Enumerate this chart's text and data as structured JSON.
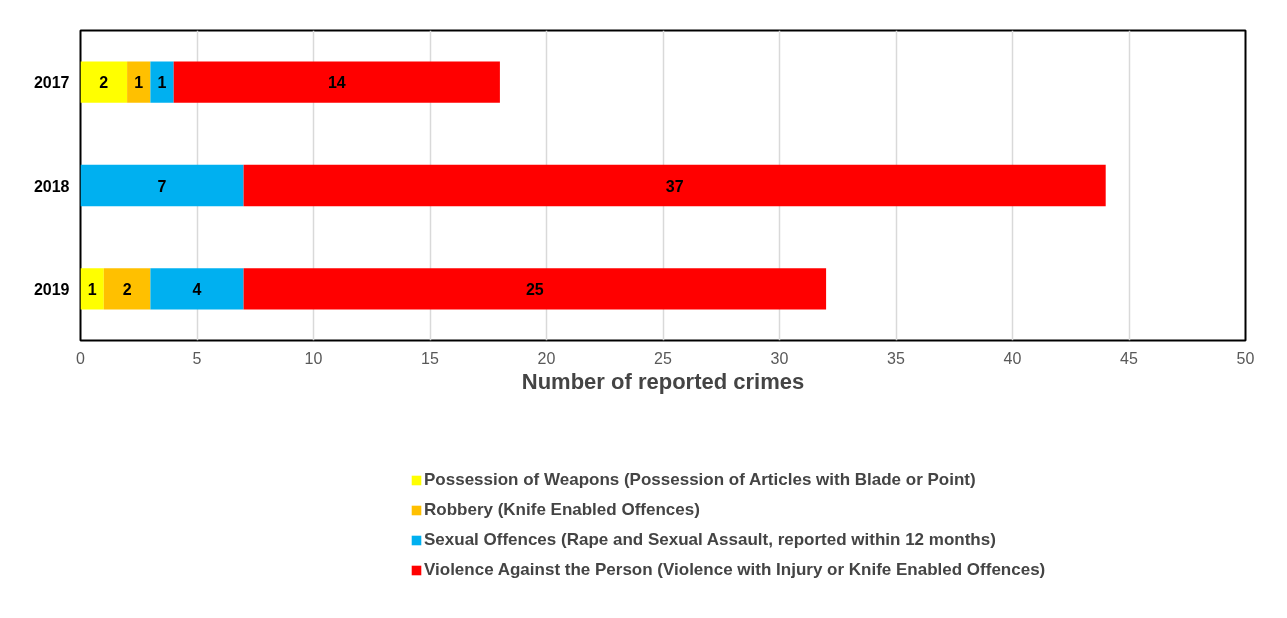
{
  "chart_data": {
    "type": "bar",
    "orientation": "horizontal",
    "stacked": true,
    "categories": [
      "2017",
      "2018",
      "2019"
    ],
    "series": [
      {
        "name": "Possession of Weapons (Possession of Articles with Blade or Point)",
        "color": "#ffff00",
        "values": [
          2,
          0,
          1
        ],
        "value_labels": [
          "2",
          null,
          "1"
        ]
      },
      {
        "name": "Robbery (Knife Enabled Offences)",
        "color": "#ffc000",
        "values": [
          1,
          0,
          2
        ],
        "value_labels": [
          "1",
          null,
          "2"
        ]
      },
      {
        "name": "Sexual Offences (Rape and Sexual Assault, reported within 12 months)",
        "color": "#00b0f0",
        "values": [
          1,
          7,
          4
        ],
        "value_labels": [
          "1",
          "7",
          "4"
        ]
      },
      {
        "name": "Violence Against the Person (Violence with Injury or Knife Enabled Offences)",
        "color": "#ff0000",
        "values": [
          14,
          37,
          25
        ],
        "value_labels": [
          "14",
          "37",
          "25"
        ]
      }
    ],
    "xlim": [
      0,
      50
    ],
    "xticks": [
      0,
      5,
      10,
      15,
      20,
      25,
      30,
      35,
      40,
      45,
      50
    ],
    "xlabel": "Number of reported crimes",
    "grid": "x",
    "legend": "bottom"
  }
}
